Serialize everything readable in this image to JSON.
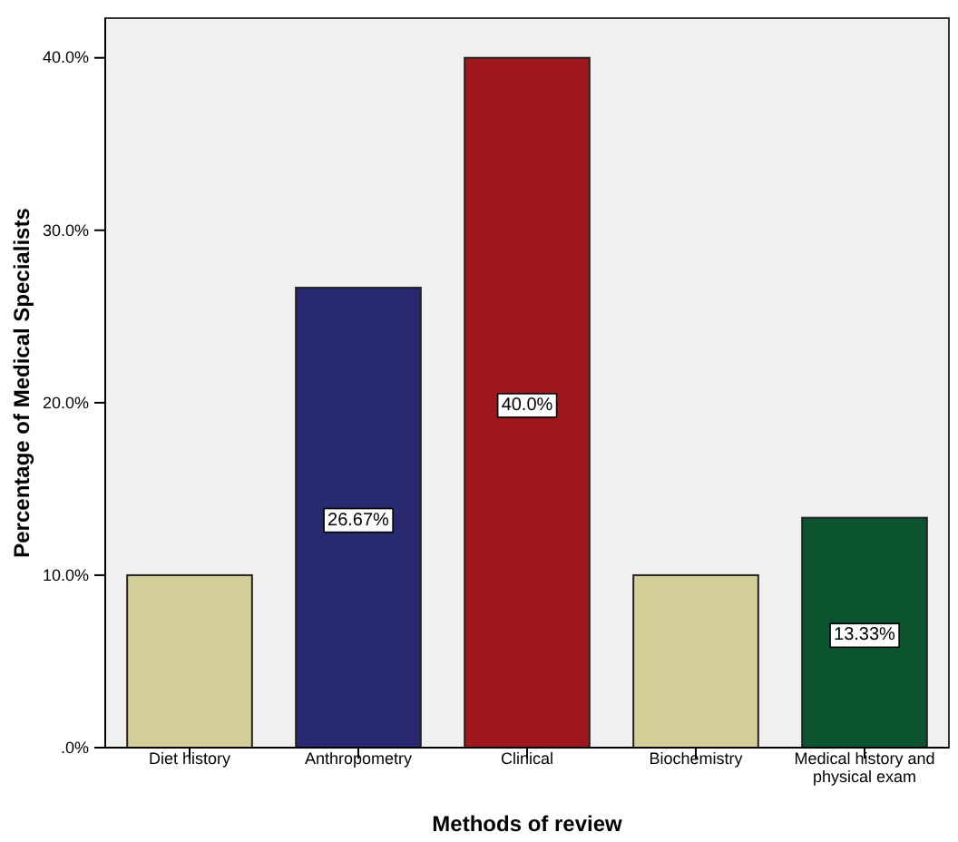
{
  "chart_data": {
    "type": "bar",
    "xlabel": "Methods of review",
    "ylabel": "Percentage of Medical Specialists",
    "categories": [
      "Diet history",
      "Anthropometry",
      "Clinical",
      "Biochemistry",
      "Medical history and physical exam"
    ],
    "values": [
      10,
      26.67,
      40,
      10,
      13.33
    ],
    "colors": [
      "#d4cf98",
      "#28296f",
      "#9e171c",
      "#d4cf98",
      "#0c5330"
    ],
    "value_labels": [
      null,
      "26.67%",
      "40.0%",
      null,
      "13.33%"
    ],
    "ylim": [
      0,
      42.3
    ],
    "yticks": [
      {
        "value": 0,
        "label": ".0%"
      },
      {
        "value": 10,
        "label": "10.0%"
      },
      {
        "value": 20,
        "label": "20.0%"
      },
      {
        "value": 30,
        "label": "30.0%"
      },
      {
        "value": 40,
        "label": "40.0%"
      }
    ],
    "grid": false
  }
}
